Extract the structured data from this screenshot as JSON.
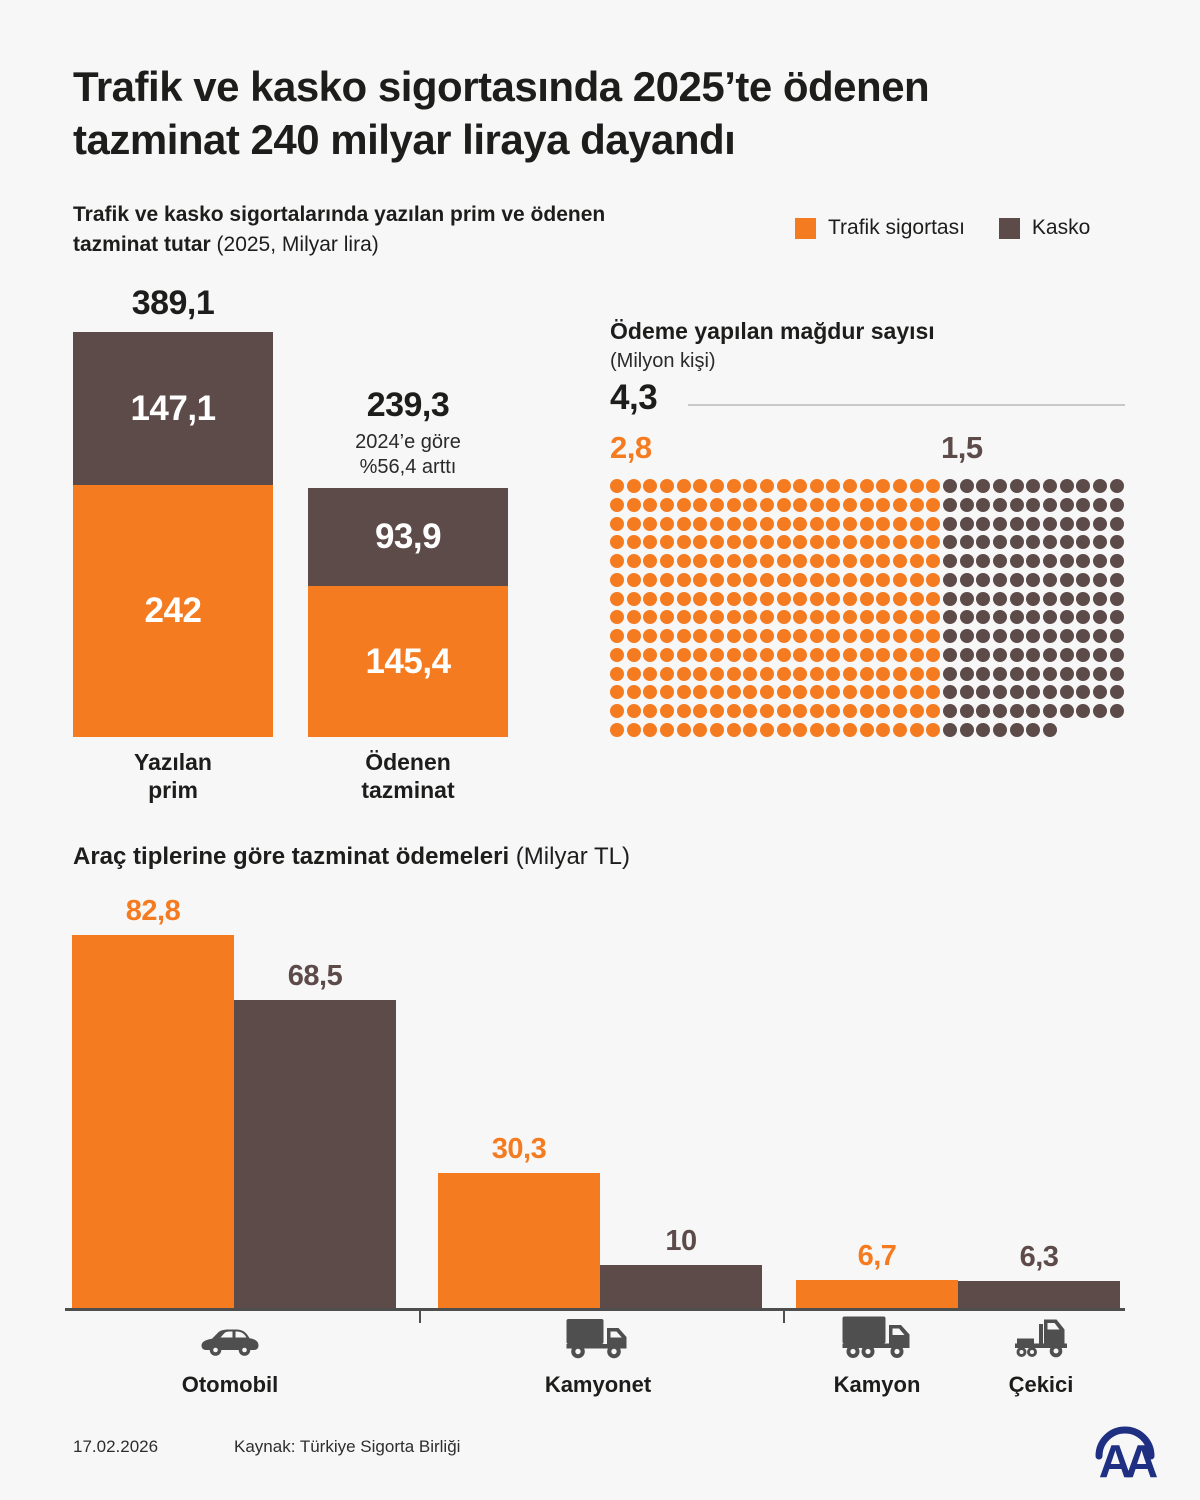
{
  "colors": {
    "trafik": "#f57b20",
    "kasko": "#5d4b4a",
    "text": "#1d1d1b",
    "icon_gray": "#4f4f4f",
    "axis": "#4e4e4e",
    "rule_gray": "#c9c9c9",
    "background": "#f7f7f8",
    "aa_blue": "#1f2f82",
    "white": "#ffffff"
  },
  "title": {
    "line1": "Trafik ve kasko sigortasında 2025’te ödenen",
    "line2": "tazminat 240 milyar liraya dayandı"
  },
  "legend": {
    "items": [
      {
        "label": "Trafik sigortası",
        "color_key": "trafik"
      },
      {
        "label": "Kasko",
        "color_key": "kasko"
      }
    ]
  },
  "section1": {
    "title_bold": "Trafik ve kasko sigortalarında yazılan prim ve ödenen tazminat tutar",
    "title_note": "(2025, Milyar lira)"
  },
  "section2": {
    "title": "Ödeme yapılan mağdur sayısı",
    "unit_note": "(Milyon kişi)"
  },
  "section3": {
    "title_bold": "Araç tiplerine göre tazminat ödemeleri",
    "title_note": "(Milyar TL)"
  },
  "footer": {
    "date": "17.02.2026",
    "source": "Kaynak: Türkiye Sigorta Birliği",
    "logo_text": "AA"
  },
  "chart_data": [
    {
      "type": "bar",
      "variant": "stacked",
      "title": "Trafik ve kasko sigortalarında yazılan prim ve ödenen tazminat tutar",
      "unit": "2025, Milyar lira",
      "categories": [
        "Yazılan prim",
        "Ödenen tazminat"
      ],
      "category_lines": [
        [
          "Yazılan",
          "prim"
        ],
        [
          "Ödenen",
          "tazminat"
        ]
      ],
      "series": [
        {
          "name": "Trafik sigortası",
          "color_key": "trafik",
          "values": [
            242,
            145.4
          ],
          "labels": [
            "242",
            "145,4"
          ]
        },
        {
          "name": "Kasko",
          "color_key": "kasko",
          "values": [
            147.1,
            93.9
          ],
          "labels": [
            "147,1",
            "93,9"
          ]
        }
      ],
      "totals": [
        389.1,
        239.3
      ],
      "total_labels": [
        "389,1",
        "239,3"
      ],
      "annotations": [
        null,
        {
          "lines": [
            "2024’e göre",
            "%56,4 arttı"
          ]
        }
      ]
    },
    {
      "type": "pictogram",
      "title": "Ödeme yapılan mağdur sayısı",
      "unit": "Milyon kişi",
      "total": 4.3,
      "total_label": "4,3",
      "dot_value": 0.01,
      "series": [
        {
          "name": "Trafik sigortası",
          "color_key": "trafik",
          "value": 2.8,
          "label": "2,8",
          "dots": 280
        },
        {
          "name": "Kasko",
          "color_key": "kasko",
          "value": 1.5,
          "label": "1,5",
          "dots": 150
        }
      ],
      "grid": {
        "rows": 14,
        "first_series_cols": 20,
        "second_series_cols": 11,
        "second_series_last_row_cols": 7
      }
    },
    {
      "type": "bar",
      "title": "Araç tiplerine göre tazminat ödemeleri",
      "unit": "Milyar TL",
      "categories": [
        "Otomobil",
        "Kamyonet",
        "Kamyon",
        "Çekici"
      ],
      "category_icons": [
        "car",
        "box-truck",
        "truck",
        "semitruck"
      ],
      "bars": [
        {
          "category": "Otomobil",
          "series": "Trafik sigortası",
          "color_key": "trafik",
          "value": 82.8,
          "label": "82,8"
        },
        {
          "category": "Otomobil",
          "series": "Kasko",
          "color_key": "kasko",
          "value": 68.5,
          "label": "68,5"
        },
        {
          "category": "Kamyonet",
          "series": "Trafik sigortası",
          "color_key": "trafik",
          "value": 30.3,
          "label": "30,3"
        },
        {
          "category": "Kamyonet",
          "series": "Kasko",
          "color_key": "kasko",
          "value": 10,
          "label": "10"
        },
        {
          "category": "Kamyon",
          "series": "Trafik sigortası",
          "color_key": "trafik",
          "value": 6.7,
          "label": "6,7"
        },
        {
          "category": "Çekici",
          "series": "Kasko",
          "color_key": "kasko",
          "value": 6.3,
          "label": "6,3"
        }
      ],
      "ylim": [
        0,
        90
      ]
    }
  ]
}
